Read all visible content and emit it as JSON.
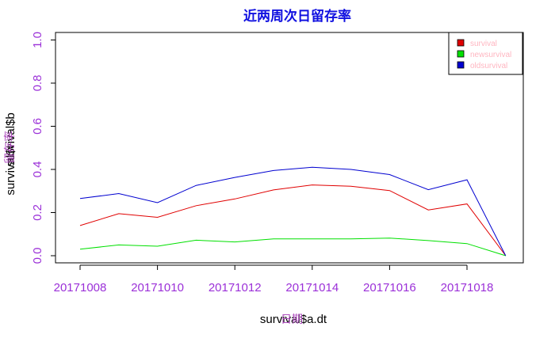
{
  "chart_data": {
    "type": "line",
    "title": "近两周次日留存率",
    "xlabel": "survival$a.dt",
    "xlabel_overlay": "日期",
    "ylabel": "survival$t",
    "ylabel_overlay1": "survival$b",
    "ylabel_overlay2": "留存率",
    "x": [
      "20171008",
      "20171009",
      "20171010",
      "20171011",
      "20171012",
      "20171013",
      "20171014",
      "20171015",
      "20171016",
      "20171017",
      "20171018",
      "20171019"
    ],
    "xticks": [
      "20171008",
      "20171010",
      "20171012",
      "20171014",
      "20171016",
      "20171018"
    ],
    "yticks": [
      "0.0",
      "0.2",
      "0.4",
      "0.6",
      "0.8",
      "1.0"
    ],
    "ylim": [
      0,
      1.0
    ],
    "grid": false,
    "legend_position": "top-right",
    "series": [
      {
        "name": "survival",
        "color": "#e00000",
        "values": [
          0.14,
          0.195,
          0.178,
          0.232,
          0.263,
          0.305,
          0.328,
          0.322,
          0.302,
          0.212,
          0.24,
          0.0
        ]
      },
      {
        "name": "newsurvival",
        "color": "#00e000",
        "values": [
          0.03,
          0.05,
          0.044,
          0.072,
          0.064,
          0.078,
          0.078,
          0.078,
          0.082,
          0.07,
          0.056,
          0.0
        ]
      },
      {
        "name": "oldsurvival",
        "color": "#0000d0",
        "values": [
          0.265,
          0.288,
          0.246,
          0.326,
          0.363,
          0.395,
          0.41,
          0.4,
          0.376,
          0.306,
          0.352,
          0.0
        ]
      }
    ]
  }
}
